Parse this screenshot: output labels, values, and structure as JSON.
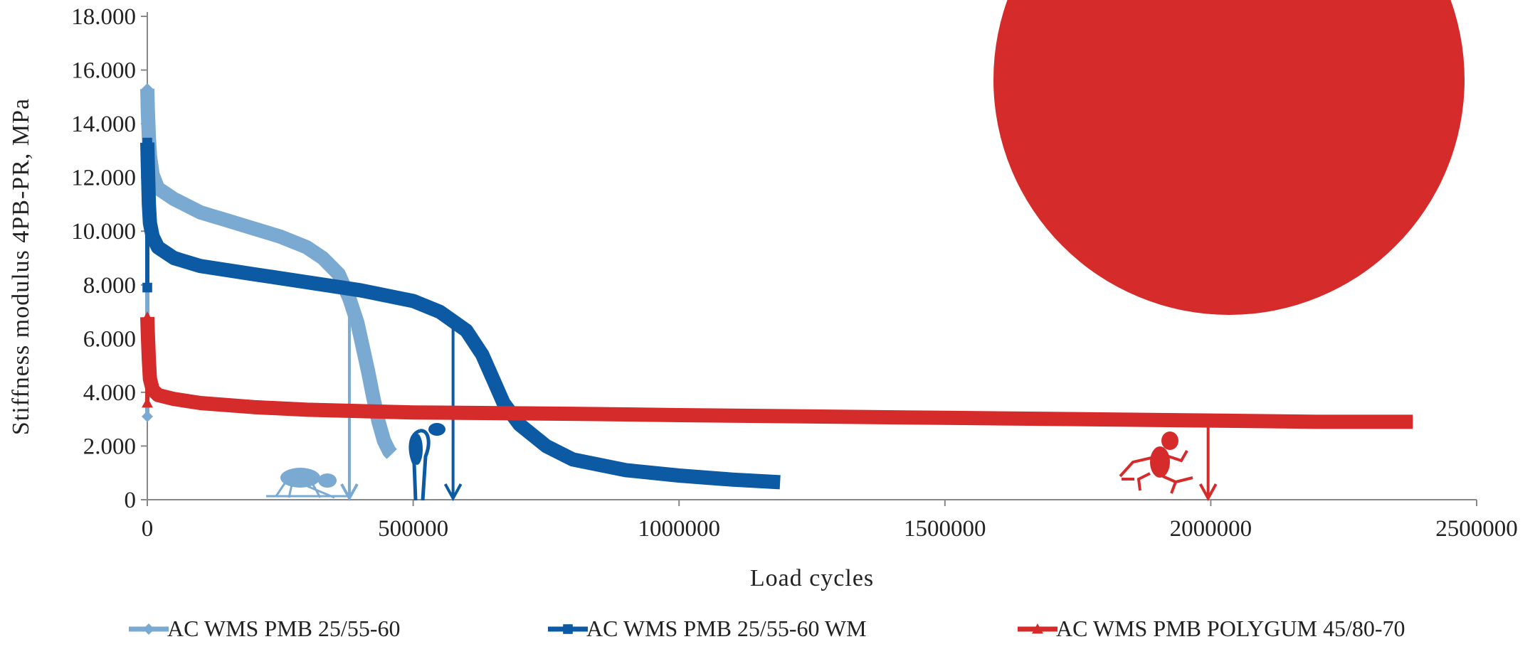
{
  "chart_data": {
    "type": "line",
    "title": "",
    "xlabel": "Load cycles",
    "ylabel": "Stiffness modulus 4PB-PR, MPa",
    "xlim": [
      0,
      2500000
    ],
    "ylim": [
      0,
      18000
    ],
    "x_ticks": [
      0,
      500000,
      1000000,
      1500000,
      2000000,
      2500000
    ],
    "x_tick_labels": [
      "0",
      "500000",
      "1000000",
      "1500000",
      "2000000",
      "2500000"
    ],
    "y_ticks": [
      0,
      2000,
      4000,
      6000,
      8000,
      10000,
      12000,
      14000,
      16000,
      18000
    ],
    "y_tick_labels": [
      "0",
      "2.000",
      "4.000",
      "6.000",
      "8.000",
      "10.000",
      "12.000",
      "14.000",
      "16.000",
      "18.000"
    ],
    "grid": false,
    "legend_position": "bottom",
    "series": [
      {
        "name": "AC WMS PMB 25/55-60",
        "color": "#7aa9d2",
        "marker": "diamond",
        "x": [
          0,
          1000,
          3000,
          5000,
          10000,
          20000,
          50000,
          100000,
          150000,
          200000,
          250000,
          300000,
          330000,
          360000,
          380000,
          395000,
          405000,
          415000,
          425000,
          435000,
          445000,
          455000,
          460000
        ],
        "y": [
          15300,
          14500,
          13500,
          12800,
          12100,
          11600,
          11200,
          10700,
          10400,
          10100,
          9800,
          9400,
          9000,
          8400,
          7500,
          6600,
          5700,
          4800,
          3800,
          2900,
          2200,
          1800,
          1700
        ],
        "spike": {
          "x": 0,
          "y_low": 3100,
          "y_high": 15300
        },
        "failure_arrow_x": 380000
      },
      {
        "name": "AC WMS PMB 25/55-60 WM",
        "color": "#0b5aa3",
        "marker": "square",
        "x": [
          0,
          1000,
          3000,
          5000,
          10000,
          20000,
          50000,
          100000,
          200000,
          300000,
          400000,
          500000,
          550000,
          600000,
          630000,
          650000,
          670000,
          700000,
          750000,
          800000,
          900000,
          1000000,
          1100000,
          1190000
        ],
        "y": [
          13300,
          12500,
          11000,
          10300,
          9800,
          9400,
          9000,
          8700,
          8400,
          8100,
          7800,
          7400,
          7000,
          6300,
          5400,
          4500,
          3600,
          2800,
          2000,
          1500,
          1100,
          900,
          750,
          650
        ],
        "spike": {
          "x": 0,
          "y_low": 7900,
          "y_high": 13300
        },
        "failure_arrow_x": 575000
      },
      {
        "name": "AC WMS PMB POLYGUM 45/80-70",
        "color": "#d62b2b",
        "marker": "triangle",
        "x": [
          0,
          1000,
          3000,
          5000,
          10000,
          20000,
          50000,
          100000,
          200000,
          300000,
          500000,
          800000,
          1000000,
          1500000,
          2000000,
          2200000,
          2380000
        ],
        "y": [
          6800,
          6200,
          5200,
          4500,
          4100,
          3900,
          3750,
          3600,
          3450,
          3350,
          3250,
          3200,
          3150,
          3050,
          2950,
          2900,
          2900
        ],
        "spike": {
          "x": 0,
          "y_low": 3600,
          "y_high": 6800
        },
        "failure_arrow_x": 1995000
      }
    ],
    "annotation_circle_color": "#d62b2b"
  }
}
